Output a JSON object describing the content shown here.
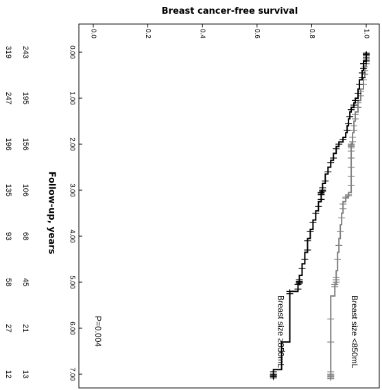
{
  "chart_data": {
    "type": "line",
    "title": "Breast cancer-free survival",
    "ylabel": "Breast cancer-free survival",
    "xlabel": "Follow-up, years",
    "orientation": "rotated-90-clockwise",
    "xlim": [
      -0.1,
      7.35
    ],
    "ylim": [
      0.0,
      1.02
    ],
    "x_ticks": [
      "0.00",
      "1.00",
      "2.00",
      "3.00",
      "4.00",
      "5.00",
      "6.00",
      "7.00"
    ],
    "y_ticks": [
      "0.0",
      "0.2",
      "0.4",
      "0.6",
      "0.8",
      "1.0"
    ],
    "annotation": "P=0.004",
    "censor_marks": true,
    "series": [
      {
        "name": "Breast size <850mL",
        "color": "#808080",
        "steps": [
          [
            0.0,
            1.0
          ],
          [
            0.3,
            0.995
          ],
          [
            0.55,
            0.99
          ],
          [
            0.8,
            0.98
          ],
          [
            1.05,
            0.97
          ],
          [
            1.3,
            0.96
          ],
          [
            1.5,
            0.955
          ],
          [
            1.75,
            0.95
          ],
          [
            2.0,
            0.945
          ],
          [
            3.05,
            0.935
          ],
          [
            3.15,
            0.925
          ],
          [
            3.25,
            0.915
          ],
          [
            3.5,
            0.91
          ],
          [
            3.75,
            0.905
          ],
          [
            4.05,
            0.9
          ],
          [
            4.35,
            0.895
          ],
          [
            4.75,
            0.89
          ],
          [
            5.05,
            0.885
          ],
          [
            5.3,
            0.87
          ],
          [
            7.1,
            0.87
          ]
        ],
        "censor_x": [
          0.02,
          0.05,
          0.08,
          0.12,
          0.15,
          0.2,
          0.25,
          0.32,
          0.4,
          0.48,
          0.6,
          0.7,
          0.85,
          0.95,
          1.1,
          1.2,
          1.35,
          1.45,
          1.6,
          1.7,
          1.85,
          1.95,
          2.0,
          2.02,
          2.05,
          2.08,
          2.15,
          2.3,
          2.5,
          2.7,
          2.9,
          3.1,
          3.12,
          3.15,
          3.18,
          3.3,
          3.4,
          3.6,
          3.9,
          4.2,
          4.5,
          4.9,
          4.95,
          5.0,
          5.05,
          5.1,
          5.8,
          6.3,
          6.95,
          7.0,
          7.02,
          7.05,
          7.08,
          7.1
        ]
      },
      {
        "name": "Breast size ≥850mL",
        "color": "#000000",
        "steps": [
          [
            0.0,
            1.0
          ],
          [
            0.2,
            0.99
          ],
          [
            0.4,
            0.985
          ],
          [
            0.6,
            0.975
          ],
          [
            0.8,
            0.97
          ],
          [
            1.0,
            0.96
          ],
          [
            1.1,
            0.955
          ],
          [
            1.2,
            0.945
          ],
          [
            1.3,
            0.94
          ],
          [
            1.45,
            0.935
          ],
          [
            1.6,
            0.93
          ],
          [
            1.75,
            0.925
          ],
          [
            1.85,
            0.915
          ],
          [
            1.95,
            0.9
          ],
          [
            2.05,
            0.89
          ],
          [
            2.2,
            0.88
          ],
          [
            2.35,
            0.87
          ],
          [
            2.5,
            0.86
          ],
          [
            2.65,
            0.85
          ],
          [
            2.85,
            0.84
          ],
          [
            3.05,
            0.835
          ],
          [
            3.25,
            0.825
          ],
          [
            3.45,
            0.815
          ],
          [
            3.65,
            0.805
          ],
          [
            3.85,
            0.795
          ],
          [
            4.05,
            0.785
          ],
          [
            4.35,
            0.775
          ],
          [
            4.6,
            0.765
          ],
          [
            4.85,
            0.755
          ],
          [
            5.05,
            0.75
          ],
          [
            5.2,
            0.72
          ],
          [
            6.3,
            0.69
          ],
          [
            6.9,
            0.66
          ],
          [
            7.1,
            0.66
          ]
        ],
        "censor_x": [
          0.02,
          0.05,
          0.08,
          0.12,
          0.18,
          0.25,
          0.35,
          0.45,
          0.55,
          0.7,
          0.9,
          1.05,
          1.15,
          1.25,
          1.4,
          1.55,
          1.7,
          1.9,
          2.0,
          2.1,
          2.3,
          2.4,
          2.6,
          2.8,
          2.95,
          3.0,
          3.02,
          3.05,
          3.08,
          3.1,
          3.2,
          3.35,
          3.5,
          3.7,
          3.9,
          4.1,
          4.3,
          4.5,
          4.7,
          4.95,
          4.98,
          5.0,
          5.02,
          5.05,
          5.15,
          5.2,
          5.25,
          6.5,
          6.95,
          7.0,
          7.02,
          7.05,
          7.08
        ]
      }
    ],
    "risk_table": {
      "columns": [
        {
          "x": 0,
          "n": [
            "243",
            "319"
          ]
        },
        {
          "x": 1,
          "n": [
            "195",
            "247"
          ]
        },
        {
          "x": 2,
          "n": [
            "156",
            "196"
          ]
        },
        {
          "x": 3,
          "n": [
            "106",
            "135"
          ]
        },
        {
          "x": 4,
          "n": [
            "68",
            "93"
          ]
        },
        {
          "x": 5,
          "n": [
            "45",
            "58"
          ]
        },
        {
          "x": 6,
          "n": [
            "21",
            "27"
          ]
        },
        {
          "x": 7,
          "n": [
            "13",
            "12"
          ]
        }
      ]
    }
  }
}
